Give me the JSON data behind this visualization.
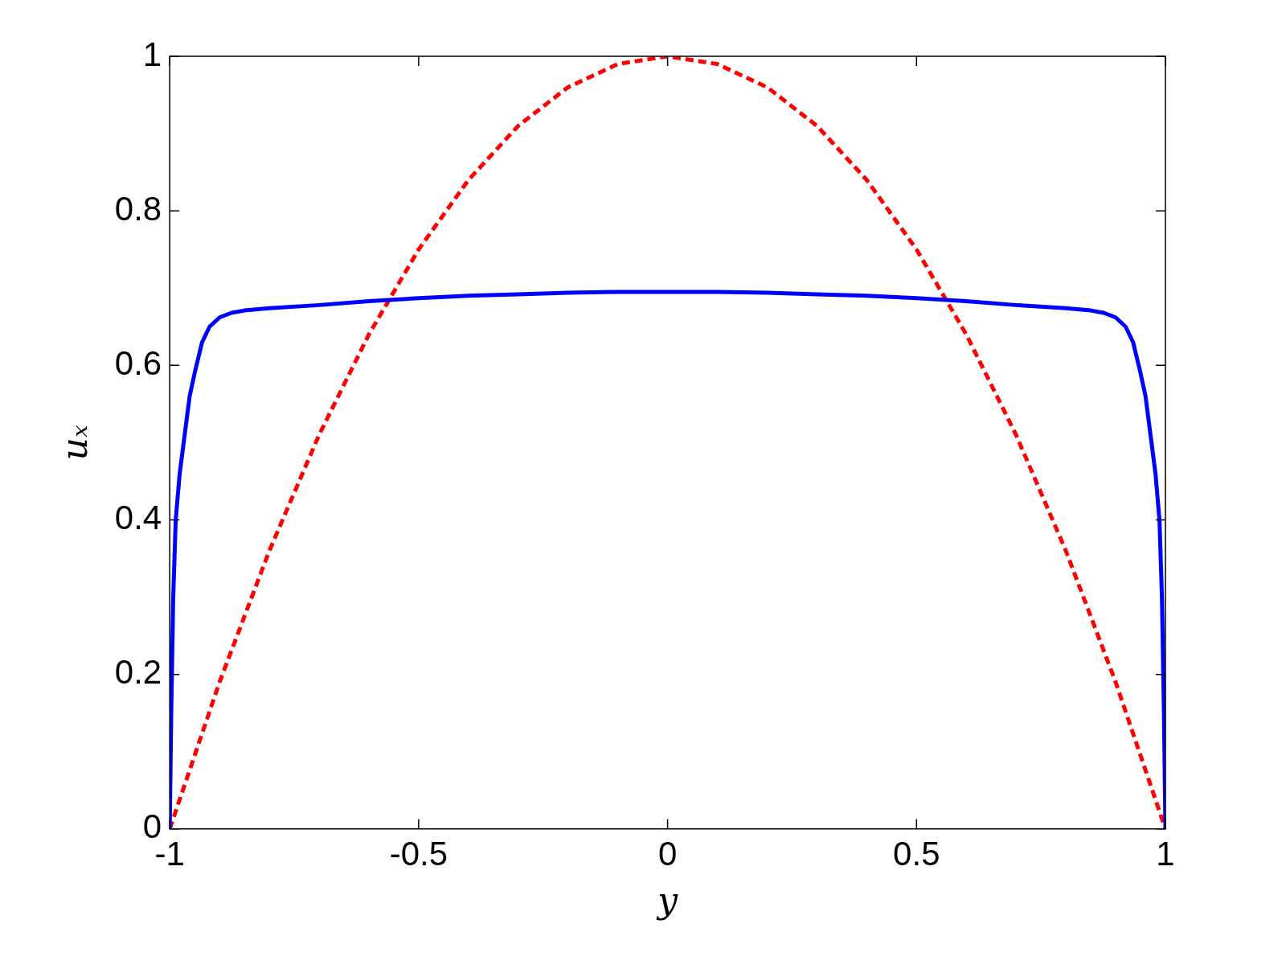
{
  "chart_data": {
    "type": "line",
    "xlabel": "y",
    "ylabel": "uₓ",
    "xlim": [
      -1,
      1
    ],
    "ylim": [
      0,
      1
    ],
    "xticks": [
      -1,
      -0.5,
      0,
      0.5,
      1
    ],
    "yticks": [
      0,
      0.2,
      0.4,
      0.6,
      0.8,
      1
    ],
    "grid": false,
    "legend": false,
    "marker": "none",
    "series": [
      {
        "color": "#0000ff",
        "line_style": "solid",
        "x": [
          -1,
          -0.997,
          -0.993,
          -0.988,
          -0.98,
          -0.972,
          -0.96,
          -0.95,
          -0.935,
          -0.92,
          -0.9,
          -0.876,
          -0.85,
          -0.8,
          -0.7,
          -0.6,
          -0.5,
          -0.4,
          -0.3,
          -0.2,
          -0.1,
          0,
          0.1,
          0.2,
          0.3,
          0.4,
          0.5,
          0.6,
          0.7,
          0.8,
          0.85,
          0.876,
          0.9,
          0.92,
          0.935,
          0.95,
          0.96,
          0.972,
          0.98,
          0.988,
          0.993,
          0.997,
          1
        ],
        "values": [
          0,
          0.15,
          0.3,
          0.4,
          0.46,
          0.5,
          0.56,
          0.59,
          0.63,
          0.65,
          0.662,
          0.668,
          0.671,
          0.674,
          0.678,
          0.683,
          0.687,
          0.69,
          0.692,
          0.694,
          0.695,
          0.695,
          0.695,
          0.694,
          0.692,
          0.69,
          0.687,
          0.683,
          0.678,
          0.674,
          0.671,
          0.668,
          0.662,
          0.65,
          0.63,
          0.59,
          0.56,
          0.5,
          0.46,
          0.4,
          0.3,
          0.15,
          0
        ]
      },
      {
        "color": "#ff0000",
        "line_style": "dashed",
        "x": [
          -1,
          -0.9,
          -0.8,
          -0.7,
          -0.6,
          -0.5,
          -0.4,
          -0.3,
          -0.2,
          -0.1,
          0,
          0.1,
          0.2,
          0.3,
          0.4,
          0.5,
          0.6,
          0.7,
          0.8,
          0.9,
          1
        ],
        "values": [
          0,
          0.19,
          0.36,
          0.51,
          0.64,
          0.75,
          0.84,
          0.91,
          0.96,
          0.99,
          1,
          0.99,
          0.96,
          0.91,
          0.84,
          0.75,
          0.64,
          0.51,
          0.36,
          0.19,
          0
        ]
      }
    ]
  }
}
